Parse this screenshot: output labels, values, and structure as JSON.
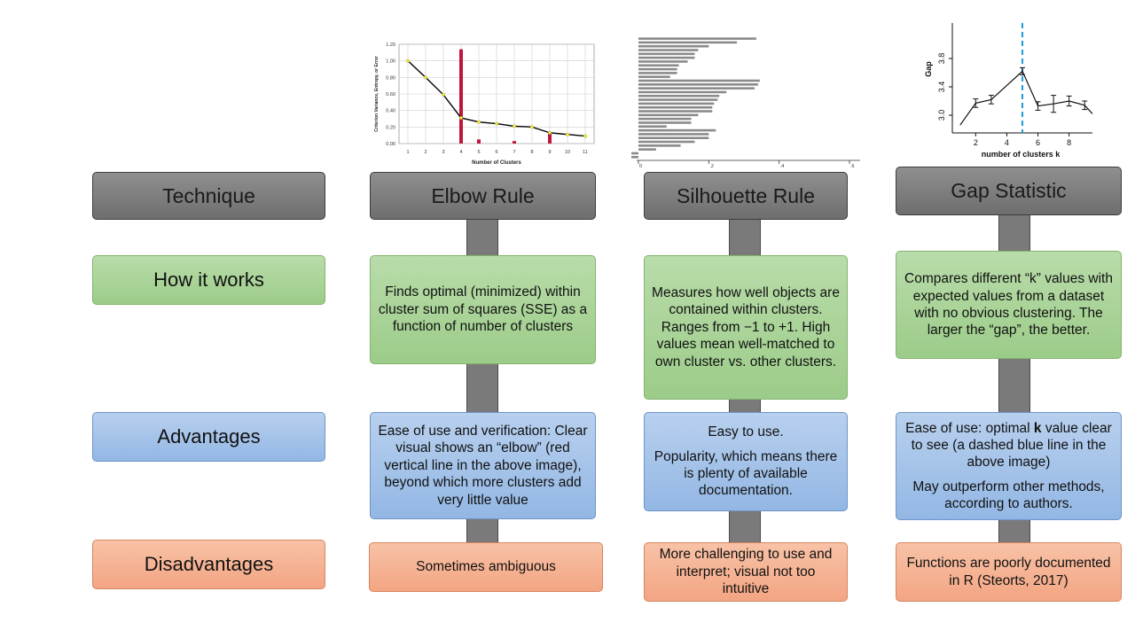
{
  "headers": {
    "technique": "Technique",
    "elbow": "Elbow Rule",
    "silhouette": "Silhouette Rule",
    "gap": "Gap Statistic"
  },
  "rows": {
    "how": "How it works",
    "advantages": "Advantages",
    "disadvantages": "Disadvantages"
  },
  "elbow": {
    "how": "Finds optimal (minimized) within cluster sum of squares (SSE) as a function of number of clusters",
    "advantages": "Ease of use and verification: Clear visual shows an “elbow” (red vertical line in the above image), beyond which more clusters add very little value",
    "disadvantages": "Sometimes ambiguous"
  },
  "silhouette": {
    "how": "Measures how well objects are contained within clusters. Ranges from −1 to +1. High values mean well-matched to own cluster vs. other clusters.",
    "advantages_1": "Easy to use.",
    "advantages_2": "Popularity, which means there is plenty of available documentation.",
    "disadvantages": "More challenging to use and interpret; visual not too intuitive"
  },
  "gap": {
    "how": "Compares different “k” values with expected values from a dataset with no obvious clustering. The larger the “gap”, the better.",
    "advantages_1_pre": "Ease of use: optimal ",
    "advantages_1_bold": "k",
    "advantages_1_post": " value clear to see (a dashed blue line in the above image)",
    "advantages_2": "May outperform other methods, according to authors.",
    "disadvantages": "Functions are poorly documented in R (Steorts, 2017)"
  },
  "colors": {
    "header": "#7f7f7f",
    "how": "#a9d18e",
    "advantages": "#a4c2e8",
    "disadvantages": "#f4b183",
    "elbow_bar": "#c0143c",
    "gap_line": "#1f9bd7"
  },
  "chart_data": [
    {
      "type": "line",
      "ylabel": "Criterion Variance, Entropy, or Error",
      "xlabel": "Number of Clusters",
      "x": [
        1,
        2,
        3,
        4,
        5,
        6,
        7,
        8,
        9,
        10,
        11
      ],
      "x_ticks": [
        "1",
        "2",
        "3",
        "4",
        "5",
        "6",
        "7",
        "8",
        "9",
        "10",
        "11"
      ],
      "y_ticks": [
        "0.00",
        "0.20",
        "0.40",
        "0.60",
        "0.80",
        "1.00",
        "1.20"
      ],
      "ylim": [
        0,
        1.2
      ],
      "series": [
        {
          "values": [
            1.0,
            0.8,
            0.59,
            0.31,
            0.26,
            0.24,
            0.21,
            0.2,
            0.13,
            0.11,
            0.09
          ]
        }
      ],
      "bars": {
        "x": [
          4,
          5,
          7,
          9
        ],
        "values": [
          1.14,
          0.05,
          0.03,
          0.14
        ]
      },
      "grid": true
    },
    {
      "type": "bar",
      "orientation": "horizontal",
      "x_ticks": [
        "0",
        ".2",
        ".4",
        ".6"
      ],
      "xlim": [
        0,
        0.6
      ],
      "values": [
        0.335,
        0.28,
        0.2,
        0.17,
        0.16,
        0.16,
        0.14,
        0.115,
        0.11,
        0.11,
        0.09,
        0.345,
        0.34,
        0.33,
        0.25,
        0.23,
        0.225,
        0.215,
        0.21,
        0.21,
        0.17,
        0.15,
        0.15,
        0.08,
        0.22,
        0.2,
        0.2,
        0.16,
        0.12,
        0.05,
        -0.02,
        -0.02
      ]
    },
    {
      "type": "line",
      "ylabel": "Gap",
      "xlabel": "number of clusters k",
      "x_ticks": [
        "2",
        "4",
        "6",
        "8"
      ],
      "y_ticks": [
        "3.0",
        "3.4",
        "3.8"
      ],
      "xlim": [
        0.5,
        9.5
      ],
      "ylim": [
        2.75,
        4.3
      ],
      "x": [
        1,
        2,
        3,
        4,
        5,
        6,
        7,
        8,
        9,
        9.5
      ],
      "series": [
        {
          "values": [
            2.86,
            3.17,
            3.22,
            3.42,
            3.62,
            3.13,
            3.16,
            3.2,
            3.14,
            3.02
          ],
          "errors": [
            0,
            0.06,
            0.06,
            0,
            0.05,
            0.06,
            0.12,
            0.07,
            0.06,
            0
          ]
        }
      ],
      "vline_x": 5
    }
  ]
}
